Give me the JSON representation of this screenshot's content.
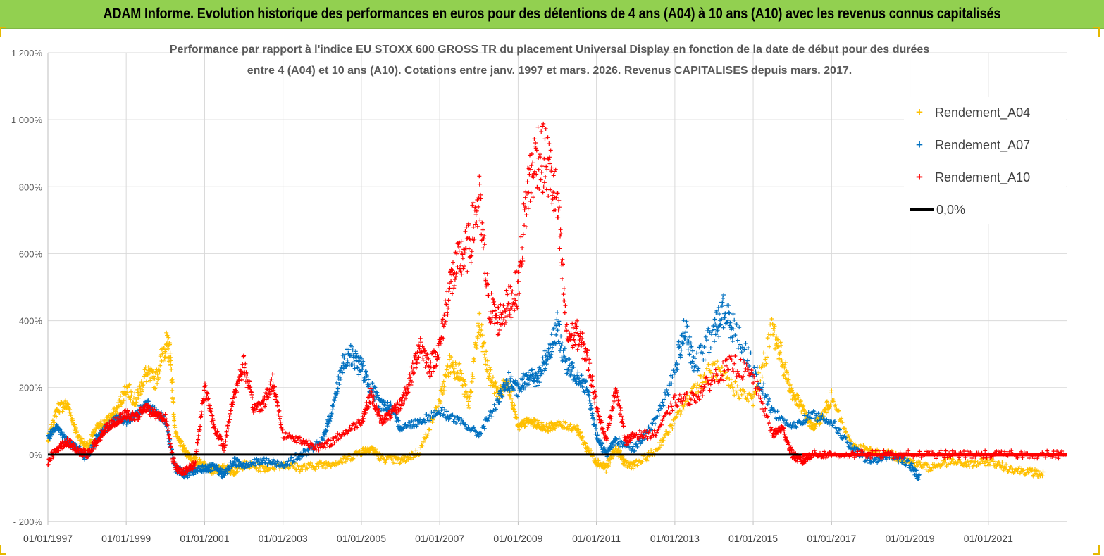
{
  "banner": {
    "title": "ADAM Informe. Evolution historique des performances en euros pour des détentions de 4 ans (A04) à 10 ans (A10) avec les revenus connus capitalisés"
  },
  "chart_data": {
    "type": "scatter",
    "title": "Performance par rapport à l'indice EU STOXX 600 GROSS TR  du placement Universal Display en fonction de la date de début pour des durées",
    "subtitle": "entre 4 (A04) et 10 ans (A10). Cotations entre janv. 1997 et mars. 2026. Revenus CAPITALISES depuis mars. 2017.",
    "xlabel": "",
    "ylabel": "",
    "x_axis": {
      "type": "date",
      "range": [
        "1997-01-01",
        "2023-01-01"
      ]
    },
    "y_axis": {
      "unit": "%",
      "range": [
        -200,
        1200
      ]
    },
    "grid": true,
    "legend_position": "top-right",
    "x_tick_labels": [
      "01/01/1997",
      "01/01/1999",
      "01/01/2001",
      "01/01/2003",
      "01/01/2005",
      "01/01/2007",
      "01/01/2009",
      "01/01/2011",
      "01/01/2013",
      "01/01/2015",
      "01/01/2017",
      "01/01/2019",
      "01/01/2021"
    ],
    "y_tick_labels": [
      "- 200%",
      "0%",
      "200%",
      "400%",
      "600%",
      "800%",
      "1 000%",
      "1 200%"
    ],
    "y_tick_values": [
      -200,
      0,
      200,
      400,
      600,
      800,
      1000,
      1200
    ],
    "series": [
      {
        "name": "Rendement_A04",
        "color": "#ffc000",
        "marker": "+",
        "points": [
          [
            "1997-01-01",
            40
          ],
          [
            "1997-04-01",
            140
          ],
          [
            "1997-07-01",
            150
          ],
          [
            "1997-10-01",
            60
          ],
          [
            "1998-01-01",
            20
          ],
          [
            "1998-04-01",
            80
          ],
          [
            "1998-07-01",
            100
          ],
          [
            "1998-10-01",
            130
          ],
          [
            "1999-01-01",
            200
          ],
          [
            "1999-04-01",
            160
          ],
          [
            "1999-07-01",
            240
          ],
          [
            "1999-10-01",
            220
          ],
          [
            "2000-01-01",
            330
          ],
          [
            "2000-02-15",
            310
          ],
          [
            "2000-04-01",
            60
          ],
          [
            "2000-07-01",
            10
          ],
          [
            "2000-10-01",
            -20
          ],
          [
            "2001-01-01",
            -30
          ],
          [
            "2001-04-01",
            -50
          ],
          [
            "2001-07-01",
            -40
          ],
          [
            "2001-10-01",
            -50
          ],
          [
            "2002-01-01",
            -30
          ],
          [
            "2002-07-01",
            -40
          ],
          [
            "2003-01-01",
            -30
          ],
          [
            "2003-07-01",
            -40
          ],
          [
            "2004-01-01",
            -30
          ],
          [
            "2004-07-01",
            -20
          ],
          [
            "2005-01-01",
            10
          ],
          [
            "2005-04-01",
            20
          ],
          [
            "2005-07-01",
            -10
          ],
          [
            "2006-01-01",
            -20
          ],
          [
            "2006-07-01",
            10
          ],
          [
            "2007-01-01",
            160
          ],
          [
            "2007-04-01",
            270
          ],
          [
            "2007-07-01",
            250
          ],
          [
            "2007-10-01",
            150
          ],
          [
            "2008-01-01",
            390
          ],
          [
            "2008-04-01",
            240
          ],
          [
            "2008-07-01",
            180
          ],
          [
            "2008-10-01",
            220
          ],
          [
            "2009-01-01",
            80
          ],
          [
            "2009-04-01",
            100
          ],
          [
            "2009-07-01",
            90
          ],
          [
            "2009-10-01",
            80
          ],
          [
            "2010-01-01",
            90
          ],
          [
            "2010-07-01",
            80
          ],
          [
            "2010-10-01",
            20
          ],
          [
            "2011-01-01",
            -20
          ],
          [
            "2011-04-01",
            -40
          ],
          [
            "2011-07-01",
            20
          ],
          [
            "2011-10-01",
            -30
          ],
          [
            "2012-01-01",
            -30
          ],
          [
            "2012-07-01",
            10
          ],
          [
            "2013-01-01",
            100
          ],
          [
            "2013-07-01",
            200
          ],
          [
            "2014-01-01",
            260
          ],
          [
            "2014-07-01",
            200
          ],
          [
            "2015-01-01",
            160
          ],
          [
            "2015-07-01",
            380
          ],
          [
            "2015-10-01",
            280
          ],
          [
            "2016-01-01",
            180
          ],
          [
            "2016-04-01",
            140
          ],
          [
            "2016-07-01",
            80
          ],
          [
            "2016-10-01",
            110
          ],
          [
            "2017-01-01",
            170
          ],
          [
            "2017-07-01",
            30
          ],
          [
            "2018-01-01",
            10
          ],
          [
            "2018-07-01",
            0
          ],
          [
            "2019-01-01",
            -20
          ],
          [
            "2019-07-01",
            -40
          ],
          [
            "2020-01-01",
            -20
          ],
          [
            "2020-07-01",
            -30
          ],
          [
            "2021-01-01",
            -20
          ],
          [
            "2021-07-01",
            -40
          ],
          [
            "2022-01-01",
            -50
          ],
          [
            "2022-06-01",
            -60
          ]
        ]
      },
      {
        "name": "Rendement_A07",
        "color": "#0070c0",
        "marker": "+",
        "points": [
          [
            "1997-01-01",
            50
          ],
          [
            "1997-04-01",
            80
          ],
          [
            "1997-07-01",
            40
          ],
          [
            "1997-10-01",
            20
          ],
          [
            "1998-01-01",
            -10
          ],
          [
            "1998-04-01",
            50
          ],
          [
            "1998-07-01",
            80
          ],
          [
            "1998-10-01",
            110
          ],
          [
            "1999-01-01",
            100
          ],
          [
            "1999-04-01",
            120
          ],
          [
            "1999-07-01",
            150
          ],
          [
            "1999-10-01",
            130
          ],
          [
            "2000-01-01",
            100
          ],
          [
            "2000-04-01",
            -40
          ],
          [
            "2000-07-01",
            -60
          ],
          [
            "2000-10-01",
            -50
          ],
          [
            "2001-01-01",
            -40
          ],
          [
            "2001-04-01",
            -40
          ],
          [
            "2001-07-01",
            -60
          ],
          [
            "2001-10-01",
            -20
          ],
          [
            "2002-01-01",
            -30
          ],
          [
            "2002-07-01",
            -20
          ],
          [
            "2003-01-01",
            -30
          ],
          [
            "2003-07-01",
            0
          ],
          [
            "2004-01-01",
            40
          ],
          [
            "2004-04-01",
            130
          ],
          [
            "2004-07-01",
            260
          ],
          [
            "2004-10-01",
            300
          ],
          [
            "2005-01-01",
            260
          ],
          [
            "2005-04-01",
            200
          ],
          [
            "2005-07-01",
            150
          ],
          [
            "2005-10-01",
            140
          ],
          [
            "2006-01-01",
            80
          ],
          [
            "2006-07-01",
            100
          ],
          [
            "2007-01-01",
            130
          ],
          [
            "2007-07-01",
            100
          ],
          [
            "2008-01-01",
            60
          ],
          [
            "2008-07-01",
            160
          ],
          [
            "2008-10-01",
            220
          ],
          [
            "2009-01-01",
            190
          ],
          [
            "2009-04-01",
            240
          ],
          [
            "2009-07-01",
            220
          ],
          [
            "2009-10-01",
            300
          ],
          [
            "2010-01-01",
            380
          ],
          [
            "2010-04-01",
            260
          ],
          [
            "2010-07-01",
            240
          ],
          [
            "2010-10-01",
            200
          ],
          [
            "2011-01-01",
            60
          ],
          [
            "2011-04-01",
            0
          ],
          [
            "2011-07-01",
            40
          ],
          [
            "2012-01-01",
            20
          ],
          [
            "2012-07-01",
            100
          ],
          [
            "2013-01-01",
            250
          ],
          [
            "2013-04-01",
            380
          ],
          [
            "2013-07-01",
            260
          ],
          [
            "2014-01-01",
            370
          ],
          [
            "2014-04-01",
            430
          ],
          [
            "2014-07-01",
            380
          ],
          [
            "2015-01-01",
            260
          ],
          [
            "2015-07-01",
            130
          ],
          [
            "2016-01-01",
            80
          ],
          [
            "2016-07-01",
            120
          ],
          [
            "2017-01-01",
            100
          ],
          [
            "2017-07-01",
            20
          ],
          [
            "2018-01-01",
            -20
          ],
          [
            "2018-07-01",
            0
          ],
          [
            "2019-01-01",
            -30
          ],
          [
            "2019-04-01",
            -70
          ]
        ]
      },
      {
        "name": "Rendement_A10",
        "color": "#ff0000",
        "marker": "+",
        "points": [
          [
            "1997-01-01",
            -20
          ],
          [
            "1997-04-01",
            20
          ],
          [
            "1997-07-01",
            40
          ],
          [
            "1997-10-01",
            10
          ],
          [
            "1998-01-01",
            0
          ],
          [
            "1998-04-01",
            40
          ],
          [
            "1998-07-01",
            80
          ],
          [
            "1998-10-01",
            100
          ],
          [
            "1999-01-01",
            120
          ],
          [
            "1999-04-01",
            110
          ],
          [
            "1999-07-01",
            140
          ],
          [
            "1999-10-01",
            120
          ],
          [
            "2000-01-01",
            110
          ],
          [
            "2000-04-01",
            -40
          ],
          [
            "2000-07-01",
            -50
          ],
          [
            "2000-10-01",
            -30
          ],
          [
            "2001-01-01",
            200
          ],
          [
            "2001-04-01",
            80
          ],
          [
            "2001-07-01",
            20
          ],
          [
            "2001-10-01",
            180
          ],
          [
            "2002-01-01",
            270
          ],
          [
            "2002-04-01",
            140
          ],
          [
            "2002-07-01",
            150
          ],
          [
            "2002-10-01",
            220
          ],
          [
            "2003-01-01",
            60
          ],
          [
            "2003-07-01",
            40
          ],
          [
            "2004-01-01",
            20
          ],
          [
            "2004-07-01",
            60
          ],
          [
            "2005-01-01",
            100
          ],
          [
            "2005-04-01",
            180
          ],
          [
            "2005-07-01",
            100
          ],
          [
            "2005-10-01",
            120
          ],
          [
            "2006-01-01",
            150
          ],
          [
            "2006-04-01",
            220
          ],
          [
            "2006-07-01",
            330
          ],
          [
            "2006-10-01",
            260
          ],
          [
            "2007-01-01",
            320
          ],
          [
            "2007-04-01",
            500
          ],
          [
            "2007-07-01",
            580
          ],
          [
            "2007-10-01",
            620
          ],
          [
            "2008-01-01",
            760
          ],
          [
            "2008-04-01",
            450
          ],
          [
            "2008-07-01",
            400
          ],
          [
            "2008-10-01",
            450
          ],
          [
            "2009-01-01",
            500
          ],
          [
            "2009-04-01",
            800
          ],
          [
            "2009-07-01",
            900
          ],
          [
            "2009-10-01",
            870
          ],
          [
            "2010-01-01",
            750
          ],
          [
            "2010-04-01",
            350
          ],
          [
            "2010-07-01",
            360
          ],
          [
            "2010-10-01",
            300
          ],
          [
            "2011-01-01",
            150
          ],
          [
            "2011-04-01",
            40
          ],
          [
            "2011-07-01",
            200
          ],
          [
            "2011-10-01",
            40
          ],
          [
            "2012-01-01",
            60
          ],
          [
            "2012-07-01",
            60
          ],
          [
            "2013-01-01",
            160
          ],
          [
            "2013-07-01",
            170
          ],
          [
            "2014-01-01",
            230
          ],
          [
            "2014-07-01",
            270
          ],
          [
            "2015-01-01",
            230
          ],
          [
            "2015-07-01",
            60
          ],
          [
            "2015-10-01",
            80
          ],
          [
            "2016-01-01",
            0
          ],
          [
            "2016-04-01",
            -20
          ],
          [
            "2016-07-01",
            0
          ],
          [
            "2017-01-01",
            0
          ],
          [
            "2018-01-01",
            0
          ],
          [
            "2019-01-01",
            0
          ],
          [
            "2020-01-01",
            0
          ],
          [
            "2021-01-01",
            0
          ],
          [
            "2022-01-01",
            0
          ],
          [
            "2023-01-01",
            0
          ]
        ]
      },
      {
        "name": "0,0%",
        "color": "#000000",
        "marker": "line",
        "points": [
          [
            "1997-01-01",
            0
          ],
          [
            "2016-04-01",
            0
          ]
        ]
      }
    ]
  }
}
